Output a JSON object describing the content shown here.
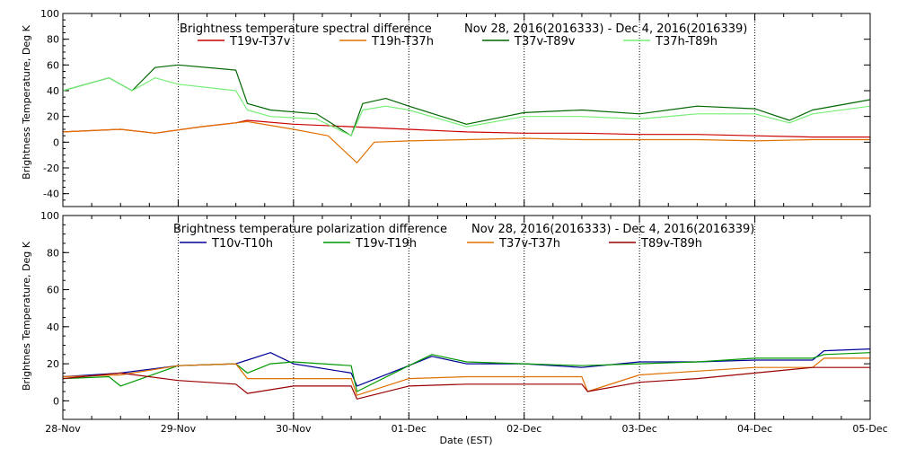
{
  "chart_data": [
    {
      "type": "line",
      "title": "Brightness temperature spectral difference",
      "date_range": "Nov 28, 2016(2016333) - Dec  4, 2016(2016339)",
      "ylabel": "Brightness Temperature, Deg K",
      "xlabel": "",
      "ylim": [
        -50,
        100
      ],
      "yticks": [
        -40,
        -20,
        0,
        20,
        40,
        60,
        80,
        100
      ],
      "xlim": [
        0,
        7
      ],
      "grid": true,
      "legend_position": "top",
      "series": [
        {
          "name": "T19v-T37v",
          "color": "#cc0000",
          "x": [
            0,
            0.5,
            0.8,
            1.2,
            1.5,
            1.6,
            2.0,
            2.5,
            3.0,
            3.5,
            4.0,
            4.5,
            5.0,
            5.5,
            6.0,
            6.5,
            7.0
          ],
          "y": [
            8,
            10,
            7,
            12,
            15,
            17,
            14,
            12,
            10,
            8,
            7,
            7,
            6,
            6,
            5,
            4,
            4
          ]
        },
        {
          "name": "T19h-T37h",
          "color": "#e07000",
          "x": [
            0,
            0.5,
            0.8,
            1.2,
            1.5,
            1.6,
            2.0,
            2.3,
            2.55,
            2.7,
            3.0,
            3.5,
            4.0,
            4.5,
            5.0,
            5.5,
            6.0,
            6.5,
            7.0
          ],
          "y": [
            8,
            10,
            7,
            12,
            15,
            16,
            10,
            5,
            -16,
            0,
            1,
            2,
            3,
            2,
            2,
            2,
            1,
            2,
            2
          ]
        },
        {
          "name": "T37v-T89v",
          "color": "#006600",
          "x": [
            0,
            0.4,
            0.6,
            0.8,
            1.0,
            1.5,
            1.6,
            1.8,
            2.2,
            2.5,
            2.6,
            2.8,
            3.0,
            3.5,
            4.0,
            4.5,
            5.0,
            5.5,
            6.0,
            6.3,
            6.5,
            7.0
          ],
          "y": [
            40,
            50,
            40,
            58,
            60,
            56,
            30,
            25,
            22,
            5,
            30,
            34,
            28,
            14,
            23,
            25,
            22,
            28,
            26,
            17,
            25,
            33
          ]
        },
        {
          "name": "T37h-T89h",
          "color": "#77ee77",
          "x": [
            0,
            0.4,
            0.6,
            0.8,
            1.0,
            1.5,
            1.6,
            1.8,
            2.2,
            2.5,
            2.6,
            2.8,
            3.0,
            3.5,
            4.0,
            4.5,
            5.0,
            5.5,
            6.0,
            6.3,
            6.5,
            7.0
          ],
          "y": [
            40,
            50,
            40,
            50,
            45,
            40,
            25,
            20,
            18,
            5,
            25,
            28,
            25,
            12,
            20,
            20,
            18,
            22,
            22,
            15,
            22,
            28
          ]
        }
      ]
    },
    {
      "type": "line",
      "title": "Brightness temperature polarization difference",
      "date_range": "Nov 28, 2016(2016333) - Dec  4, 2016(2016339)",
      "ylabel": "Brightnes Temperature, Deg K",
      "xlabel": "Date (EST)",
      "ylim": [
        -10,
        100
      ],
      "yticks": [
        0,
        20,
        40,
        60,
        80,
        100
      ],
      "xlim": [
        0,
        7
      ],
      "xtick_labels": [
        "28-Nov",
        "29-Nov",
        "30-Nov",
        "01-Dec",
        "02-Dec",
        "03-Dec",
        "04-Dec",
        "05-Dec"
      ],
      "grid": true,
      "legend_position": "top",
      "series": [
        {
          "name": "T10v-T10h",
          "color": "#000099",
          "x": [
            0,
            0.5,
            1.0,
            1.5,
            1.6,
            1.8,
            2.0,
            2.5,
            2.55,
            3.0,
            3.2,
            3.5,
            4.0,
            4.5,
            5.0,
            5.5,
            6.0,
            6.5,
            6.6,
            7.0
          ],
          "y": [
            13,
            15,
            19,
            20,
            22,
            26,
            20,
            15,
            8,
            19,
            24,
            20,
            20,
            18,
            21,
            21,
            22,
            22,
            27,
            28
          ]
        },
        {
          "name": "T19v-T19h",
          "color": "#009900",
          "x": [
            0,
            0.4,
            0.5,
            1.0,
            1.5,
            1.6,
            1.8,
            2.0,
            2.5,
            2.55,
            3.0,
            3.2,
            3.5,
            4.0,
            4.5,
            5.0,
            5.5,
            6.0,
            6.5,
            6.6,
            7.0
          ],
          "y": [
            12,
            13,
            8,
            19,
            20,
            15,
            20,
            21,
            19,
            5,
            19,
            25,
            21,
            20,
            19,
            20,
            21,
            23,
            23,
            25,
            26
          ]
        },
        {
          "name": "T37v-T37h",
          "color": "#e07000",
          "x": [
            0,
            0.5,
            1.0,
            1.5,
            1.6,
            2.0,
            2.5,
            2.55,
            3.0,
            3.5,
            4.0,
            4.5,
            4.55,
            5.0,
            5.5,
            6.0,
            6.5,
            6.6,
            7.0
          ],
          "y": [
            13,
            14,
            19,
            20,
            12,
            12,
            12,
            3,
            12,
            13,
            13,
            13,
            5,
            14,
            16,
            18,
            18,
            23,
            23
          ]
        },
        {
          "name": "T89v-T89h",
          "color": "#990000",
          "x": [
            0,
            0.5,
            1.0,
            1.5,
            1.6,
            2.0,
            2.5,
            2.55,
            3.0,
            3.5,
            4.0,
            4.5,
            4.55,
            5.0,
            5.5,
            6.0,
            6.5,
            7.0
          ],
          "y": [
            12,
            15,
            11,
            9,
            4,
            8,
            8,
            1,
            8,
            9,
            9,
            9,
            5,
            10,
            12,
            15,
            18,
            18
          ]
        }
      ]
    }
  ]
}
